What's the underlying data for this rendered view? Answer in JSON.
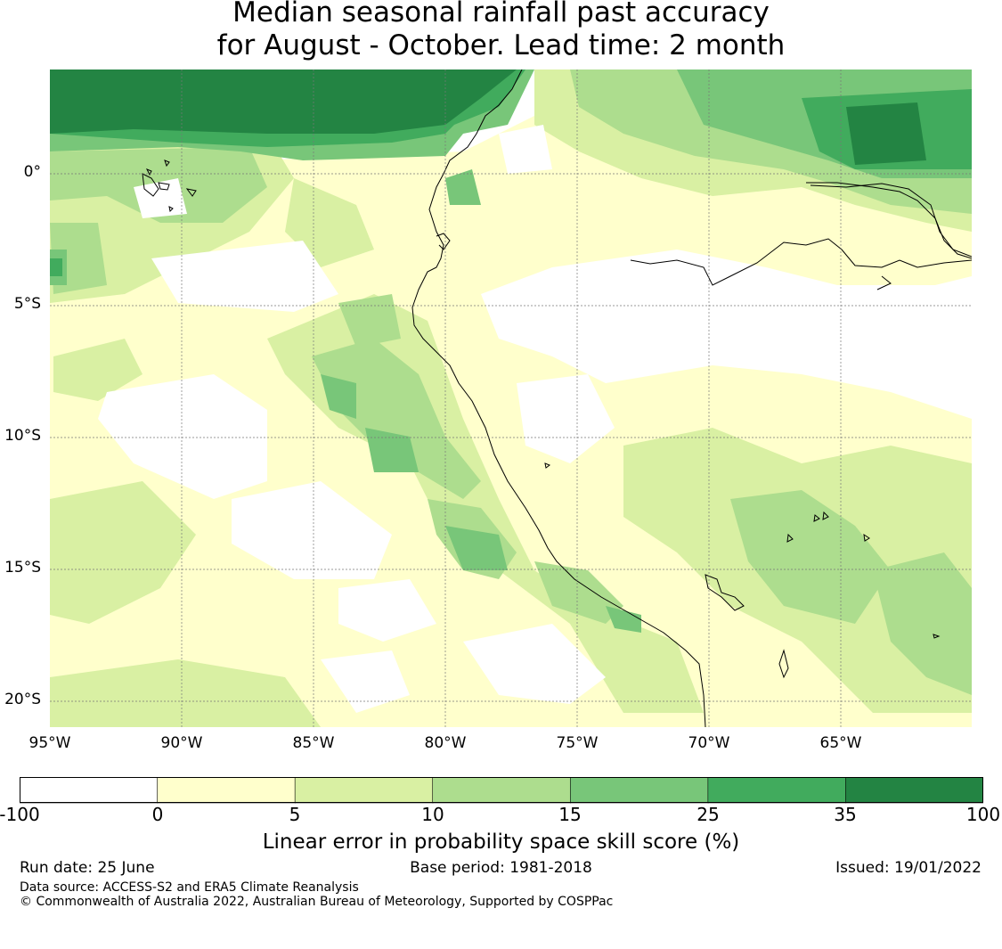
{
  "title": {
    "line1": "Median seasonal rainfall past accuracy",
    "line2": "for August - October. Lead time: 2 month"
  },
  "map": {
    "lat_labels": [
      "0°",
      "5°S",
      "10°S",
      "15°S",
      "20°S"
    ],
    "lon_labels": [
      "95°W",
      "90°W",
      "85°W",
      "80°W",
      "75°W",
      "70°W",
      "65°W"
    ],
    "lon_range": [
      -95,
      -60
    ],
    "lat_range": [
      -21,
      4
    ],
    "gridlines": true,
    "background_color": "#ffffff"
  },
  "colorbar": {
    "label": "Linear error in probability space skill score (%)",
    "ticks": [
      "-100",
      "0",
      "5",
      "10",
      "15",
      "25",
      "35",
      "100"
    ],
    "colors": [
      "#ffffff",
      "#ffffcc",
      "#d9f0a3",
      "#addd8e",
      "#78c679",
      "#41ab5d",
      "#238443"
    ]
  },
  "footer": {
    "run_date": "Run date: 25 June",
    "base_period": "Base period: 1981-2018",
    "issued": "Issued: 19/01/2022",
    "data_source": "Data source: ACCESS-S2 and ERA5 Climate Reanalysis",
    "copyright": "© Commonwealth of Australia 2022, Australian Bureau of Meteorology, Supported by COSPPac"
  }
}
